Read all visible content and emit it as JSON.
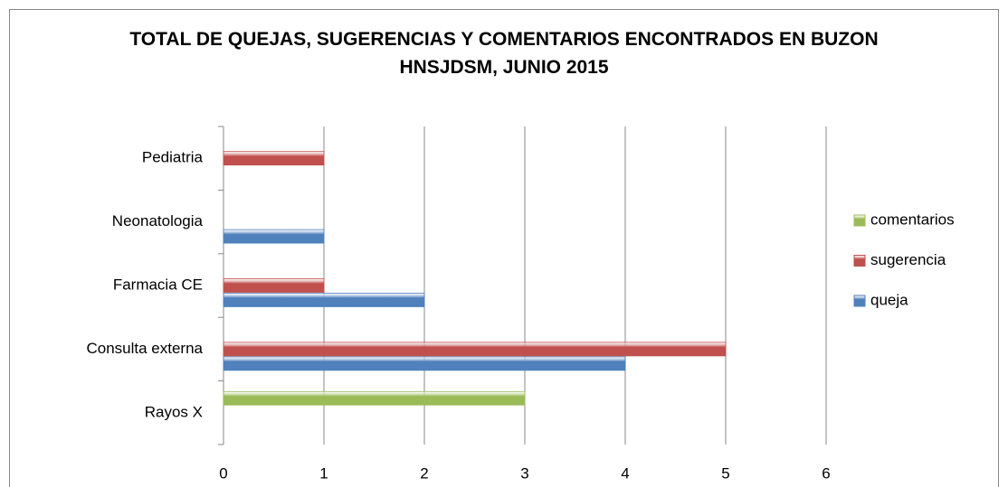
{
  "chart_data": {
    "type": "bar",
    "orientation": "horizontal",
    "title": "TOTAL DE QUEJAS, SUGERENCIAS Y COMENTARIOS ENCONTRADOS EN BUZON HNSJDSM, JUNIO 2015",
    "categories": [
      "Rayos X",
      "Consulta externa",
      "Farmacia CE",
      "Neonatologia",
      "Pediatria"
    ],
    "series": [
      {
        "name": "queja",
        "color": "#4f81bd",
        "values": [
          0,
          4,
          2,
          1,
          0
        ]
      },
      {
        "name": "sugerencia",
        "color": "#c0504d",
        "values": [
          0,
          5,
          1,
          0,
          1
        ]
      },
      {
        "name": "comentarios",
        "color": "#9bbb59",
        "values": [
          3,
          0,
          0,
          0,
          0
        ]
      }
    ],
    "xlim": [
      0,
      6
    ],
    "xticks": [
      0,
      1,
      2,
      3,
      4,
      5,
      6
    ],
    "grid": true,
    "legend": "right"
  }
}
